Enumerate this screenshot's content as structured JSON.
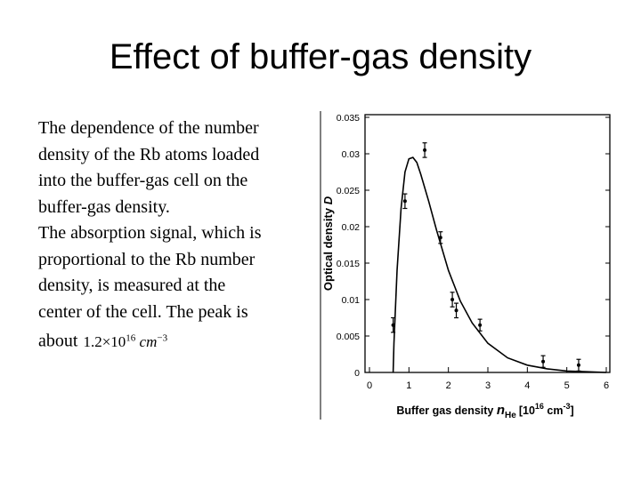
{
  "slide": {
    "title": "Effect of buffer-gas density",
    "body_lines": [
      "The dependence of the number",
      "density of the Rb atoms loaded",
      "into the buffer-gas cell on the",
      "buffer-gas density.",
      "The absorption signal, which is",
      "proportional to the Rb number",
      "density, is measured at the",
      "center of the cell. The peak is",
      "about"
    ],
    "peak": {
      "mantissa": "1.2",
      "times": "×",
      "base": "10",
      "exp": "16",
      "unit": "cm",
      "unit_exp": "−3"
    }
  },
  "chart_data": {
    "type": "scatter",
    "xlabel": "Buffer gas density",
    "xlabel_symbol": "n",
    "xlabel_subscript": "He",
    "xlabel_units": "[10",
    "xlabel_units_exp": "16",
    "xlabel_units_tail": " cm",
    "xlabel_units_tail_exp": "-3",
    "xlabel_close": "]",
    "ylabel": "Optical density",
    "ylabel_symbol": "D",
    "xlim": [
      0,
      6
    ],
    "ylim": [
      0,
      0.035
    ],
    "x_ticks": [
      "0",
      "1",
      "2",
      "3",
      "4",
      "5",
      "6"
    ],
    "y_ticks": [
      "0",
      "0.005",
      "0.01",
      "0.015",
      "0.02",
      "0.025",
      "0.03",
      "0.035"
    ],
    "grid": false,
    "series": [
      {
        "kind": "points_with_error_bars",
        "x": [
          0.6,
          0.9,
          1.4,
          1.8,
          2.1,
          2.2,
          2.8,
          4.4,
          5.3
        ],
        "y": [
          0.0065,
          0.0235,
          0.0305,
          0.0185,
          0.01,
          0.0085,
          0.0065,
          0.0015,
          0.001
        ],
        "err": [
          0.001,
          0.001,
          0.001,
          0.0008,
          0.001,
          0.001,
          0.0008,
          0.0008,
          0.0008
        ]
      },
      {
        "kind": "fit_curve",
        "x": [
          0.6,
          0.62,
          0.7,
          0.8,
          0.9,
          1.0,
          1.1,
          1.2,
          1.3,
          1.5,
          1.7,
          2.0,
          2.3,
          2.6,
          3.0,
          3.5,
          4.0,
          4.5,
          5.0,
          5.5,
          6.0
        ],
        "y": [
          0.0,
          0.004,
          0.014,
          0.0225,
          0.0275,
          0.0293,
          0.0295,
          0.0288,
          0.0272,
          0.0235,
          0.0195,
          0.014,
          0.0098,
          0.0068,
          0.004,
          0.002,
          0.001,
          0.0005,
          0.0002,
          0.0001,
          0.0
        ]
      }
    ]
  }
}
